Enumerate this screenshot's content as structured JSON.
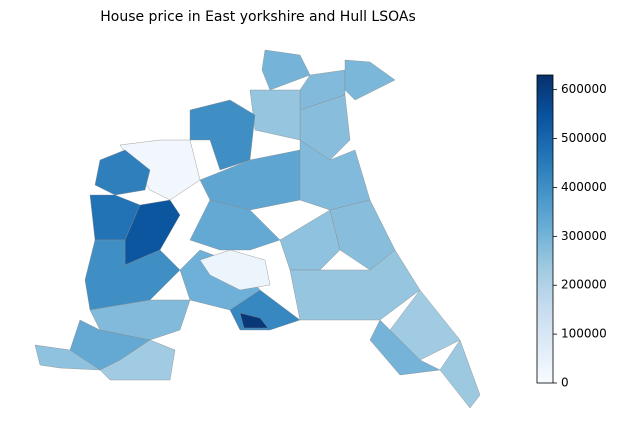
{
  "chart_data": {
    "type": "choropleth",
    "title": "House price in East yorkshire and Hull LSOAs",
    "values": [
      300000,
      280000,
      290000,
      270000,
      250000,
      400000,
      20000,
      440000,
      470000,
      540000,
      340000,
      280000,
      270000,
      330000,
      400000,
      310000,
      260000,
      250000,
      230000,
      300000,
      420000,
      610000,
      280000,
      330000,
      260000,
      230000,
      30000,
      240000
    ],
    "colors": [
      "#f7fbff",
      "#deebf7",
      "#c6dbef",
      "#9ecae1",
      "#6baed6",
      "#4292c6",
      "#2171b5",
      "#08519c",
      "#08306b"
    ],
    "clim": [
      0,
      630000
    ],
    "cticks": [
      0,
      100000,
      200000,
      300000,
      400000,
      500000,
      600000
    ]
  }
}
